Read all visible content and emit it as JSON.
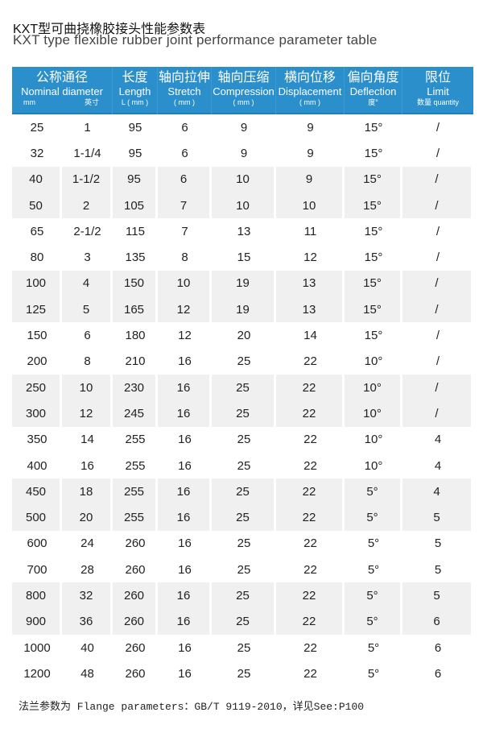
{
  "title_cn": "KXT型可曲挠橡胶接头性能参数表",
  "title_en": "KXT type flexible rubber joint performance parameter table",
  "header": [
    {
      "cn": "公称通径",
      "en": "Nominal diameter",
      "u1": "mm",
      "u2": "英寸"
    },
    {
      "cn": "长度",
      "en": "Length",
      "u": "L ( mm )"
    },
    {
      "cn": "轴向拉伸",
      "en": "Stretch",
      "u": "( mm )"
    },
    {
      "cn": "轴向压缩",
      "en": "Compression",
      "u": "( mm )"
    },
    {
      "cn": "横向位移",
      "en": "Displacement",
      "u": "( mm )"
    },
    {
      "cn": "偏向角度",
      "en": "Deflection",
      "u": "度°"
    },
    {
      "cn": "限位",
      "en": "Limit",
      "u": "数量 quantity"
    }
  ],
  "rows": [
    [
      "25",
      "1",
      "95",
      "6",
      "9",
      "9",
      "15°",
      "/"
    ],
    [
      "32",
      "1-1/4",
      "95",
      "6",
      "9",
      "9",
      "15°",
      "/"
    ],
    [
      "40",
      "1-1/2",
      "95",
      "6",
      "10",
      "9",
      "15°",
      "/"
    ],
    [
      "50",
      "2",
      "105",
      "7",
      "10",
      "10",
      "15°",
      "/"
    ],
    [
      "65",
      "2-1/2",
      "115",
      "7",
      "13",
      "11",
      "15°",
      "/"
    ],
    [
      "80",
      "3",
      "135",
      "8",
      "15",
      "12",
      "15°",
      "/"
    ],
    [
      "100",
      "4",
      "150",
      "10",
      "19",
      "13",
      "15°",
      "/"
    ],
    [
      "125",
      "5",
      "165",
      "12",
      "19",
      "13",
      "15°",
      "/"
    ],
    [
      "150",
      "6",
      "180",
      "12",
      "20",
      "14",
      "15°",
      "/"
    ],
    [
      "200",
      "8",
      "210",
      "16",
      "25",
      "22",
      "10°",
      "/"
    ],
    [
      "250",
      "10",
      "230",
      "16",
      "25",
      "22",
      "10°",
      "/"
    ],
    [
      "300",
      "12",
      "245",
      "16",
      "25",
      "22",
      "10°",
      "/"
    ],
    [
      "350",
      "14",
      "255",
      "16",
      "25",
      "22",
      "10°",
      "4"
    ],
    [
      "400",
      "16",
      "255",
      "16",
      "25",
      "22",
      "10°",
      "4"
    ],
    [
      "450",
      "18",
      "255",
      "16",
      "25",
      "22",
      "5°",
      "4"
    ],
    [
      "500",
      "20",
      "255",
      "16",
      "25",
      "22",
      "5°",
      "5"
    ],
    [
      "600",
      "24",
      "260",
      "16",
      "25",
      "22",
      "5°",
      "5"
    ],
    [
      "700",
      "28",
      "260",
      "16",
      "25",
      "22",
      "5°",
      "5"
    ],
    [
      "800",
      "32",
      "260",
      "16",
      "25",
      "22",
      "5°",
      "5"
    ],
    [
      "900",
      "36",
      "260",
      "16",
      "25",
      "22",
      "5°",
      "6"
    ],
    [
      "1000",
      "40",
      "260",
      "16",
      "25",
      "22",
      "5°",
      "6"
    ],
    [
      "1200",
      "48",
      "260",
      "16",
      "25",
      "22",
      "5°",
      "6"
    ]
  ],
  "note": "法兰参数为 Flange parameters：GB/T 9119-2010，详见See:P100"
}
